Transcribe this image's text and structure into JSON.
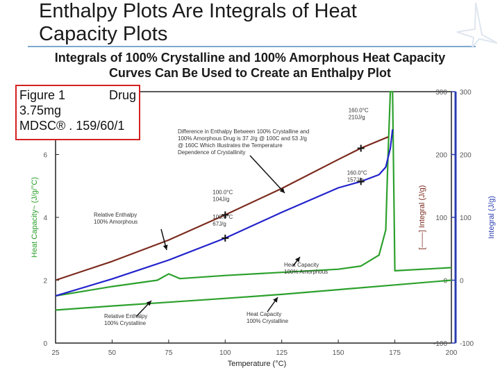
{
  "slide": {
    "title_line1": "Enthalpy Plots Are Integrals of Heat",
    "title_line2": "Capacity Plots",
    "subtitle_line1": "Integrals of 100% Crystalline and 100% Amorphous Heat Capacity",
    "subtitle_line2": "Curves Can Be Used to Create an Enthalpy Plot"
  },
  "figure_box": {
    "line1_left": "Figure 1",
    "line1_right": "Drug",
    "line2": "3.75mg",
    "line3": "MDSC® . 159/60/1"
  },
  "colors": {
    "heat_capacity": "#2ca02c",
    "amorphous_integral": "#7b2a1e",
    "crystalline_integral": "#2222cc",
    "right_axis": "#2a3db0",
    "frame_box": "#d42020"
  },
  "chart_data": {
    "type": "line",
    "xlabel": "Temperature (°C)",
    "ylabel_left": "Heat Capacity~ (J/g/°C)",
    "ylabel_right_inner": "[——] Integral (J/g)",
    "ylabel_right_outer": "Integral (J/g)",
    "xlim": [
      25,
      200
    ],
    "ylim_left": [
      0,
      8
    ],
    "ylim_right": [
      -100,
      300
    ],
    "x_ticks": [
      "25",
      "50",
      "75",
      "100",
      "125",
      "150",
      "175",
      "200"
    ],
    "y_left_ticks": [
      "0",
      "2",
      "4",
      "6"
    ],
    "y_right_inner_ticks": [
      "300",
      "200",
      "100",
      "0",
      "-100"
    ],
    "y_right_outer_ticks": [
      "300",
      "200",
      "100",
      "0",
      "-100"
    ],
    "series": [
      {
        "name": "Heat Capacity 100% Amorphous",
        "axis": "left",
        "x": [
          25,
          50,
          70,
          75,
          80,
          100,
          125,
          150,
          160,
          168,
          171,
          172,
          173,
          174,
          175,
          200
        ],
        "y": [
          1.5,
          1.8,
          2.0,
          2.2,
          2.05,
          2.15,
          2.25,
          2.35,
          2.45,
          2.8,
          3.6,
          6.0,
          8.0,
          8.0,
          2.3,
          2.4
        ]
      },
      {
        "name": "Heat Capacity 100% Crystalline",
        "axis": "left",
        "x": [
          25,
          50,
          75,
          100,
          125,
          150,
          175,
          200
        ],
        "y": [
          1.05,
          1.18,
          1.3,
          1.42,
          1.55,
          1.7,
          1.85,
          2.0
        ]
      },
      {
        "name": "Relative Enthalpy 100% Amorphous",
        "axis": "right",
        "x": [
          25,
          50,
          75,
          100,
          125,
          150,
          160,
          172
        ],
        "y": [
          0,
          30,
          64,
          104,
          146,
          192,
          210,
          228
        ]
      },
      {
        "name": "Relative Enthalpy 100% Crystalline",
        "axis": "right",
        "x": [
          25,
          50,
          75,
          100,
          125,
          150,
          160,
          168,
          171,
          173,
          174
        ],
        "y": [
          -25,
          2,
          32,
          67,
          108,
          147,
          157,
          168,
          180,
          210,
          240
        ]
      }
    ],
    "markers": [
      {
        "x": 100,
        "y": 104,
        "axis": "right",
        "label_line1": "100.0°C",
        "label_line2": "104J/g"
      },
      {
        "x": 100,
        "y": 67,
        "axis": "right",
        "label_line1": "100.0°C",
        "label_line2": "67J/g"
      },
      {
        "x": 160,
        "y": 210,
        "axis": "right",
        "label_line1": "160.0°C",
        "label_line2": "210J/g"
      },
      {
        "x": 160,
        "y": 157,
        "axis": "right",
        "label_line1": "160.0°C",
        "label_line2": "157J/g"
      }
    ],
    "annotations": [
      {
        "lines": [
          "Difference in Enthalpy Between 100% Crystalline and",
          "100% Amorphous Drug is 37 J/g @ 100C and 53 J/g",
          "@ 160C Which Illustrates the Temperature",
          "Dependence of Crystallinity"
        ]
      },
      {
        "lines": [
          "Relative Enthalpy",
          "100% Amorphous"
        ]
      },
      {
        "lines": [
          "Relative Enthalpy",
          "100% Crystalline"
        ]
      },
      {
        "lines": [
          "Heat Capacity",
          "100% Amorphous"
        ]
      },
      {
        "lines": [
          "Heat Capacity",
          "100% Crystalline"
        ]
      }
    ]
  }
}
